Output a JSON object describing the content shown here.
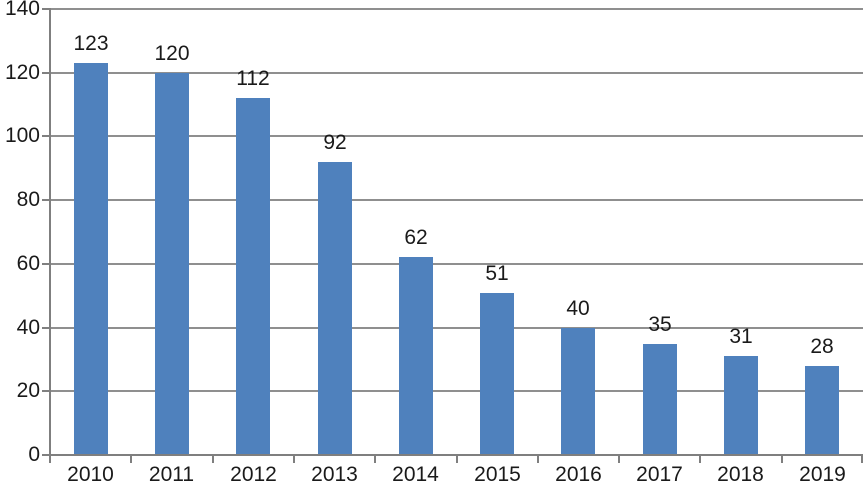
{
  "chart_data": {
    "type": "bar",
    "title": "",
    "xlabel": "",
    "ylabel": "",
    "categories": [
      "2010",
      "2011",
      "2012",
      "2013",
      "2014",
      "2015",
      "2016",
      "2017",
      "2018",
      "2019"
    ],
    "values": [
      123,
      120,
      112,
      92,
      62,
      51,
      40,
      35,
      31,
      28
    ],
    "data_labels": [
      "123",
      "120",
      "112",
      "92",
      "62",
      "51",
      "40",
      "35",
      "31",
      "28"
    ],
    "ylim": [
      0,
      140
    ],
    "yticks": [
      0,
      20,
      40,
      60,
      80,
      100,
      120,
      140
    ],
    "grid": "horizontal",
    "legend": "none",
    "bar_color": "#4f81bd",
    "gridline_color": "#8f8f8f",
    "axis_color": "#7f7f7f",
    "text_color": "#1a1a1a",
    "background_color": "#ffffff"
  }
}
